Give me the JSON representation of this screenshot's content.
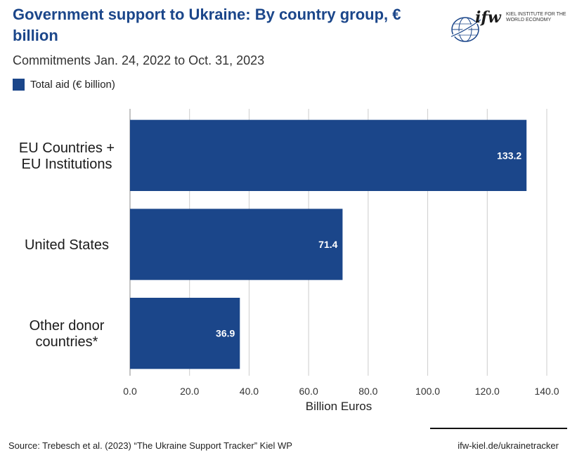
{
  "header": {
    "title": "Government support to Ukraine: By country group, € billion",
    "subtitle": "Commitments Jan. 24, 2022 to Oct. 31, 2023"
  },
  "logo": {
    "mark": "ifw",
    "tagline": "KIEL INSTITUTE FOR THE WORLD ECONOMY"
  },
  "colors": {
    "bar": "#1b468a",
    "grid": "#cccccc",
    "title": "#1b468a"
  },
  "chart_data": {
    "type": "bar",
    "orientation": "horizontal",
    "categories": [
      "EU Countries + EU Institutions",
      "United States",
      "Other donor countries*"
    ],
    "category_lines": [
      [
        "EU Countries +",
        "EU Institutions"
      ],
      [
        "United States"
      ],
      [
        "Other donor",
        "countries*"
      ]
    ],
    "series": [
      {
        "name": "Total aid (€ billion)",
        "values": [
          133.2,
          71.4,
          36.9
        ]
      }
    ],
    "value_labels": [
      "133.2",
      "71.4",
      "36.9"
    ],
    "xlabel": "Billion Euros",
    "xlim": [
      0,
      140
    ],
    "xticks": [
      "0.0",
      "20.0",
      "40.0",
      "60.0",
      "80.0",
      "100.0",
      "120.0",
      "140.0"
    ],
    "grid": true,
    "legend": "top-left"
  },
  "footer": {
    "source": "Source: Trebesch et al. (2023) “The Ukraine Support Tracker” Kiel WP",
    "link": "ifw-kiel.de/ukrainetracker"
  }
}
